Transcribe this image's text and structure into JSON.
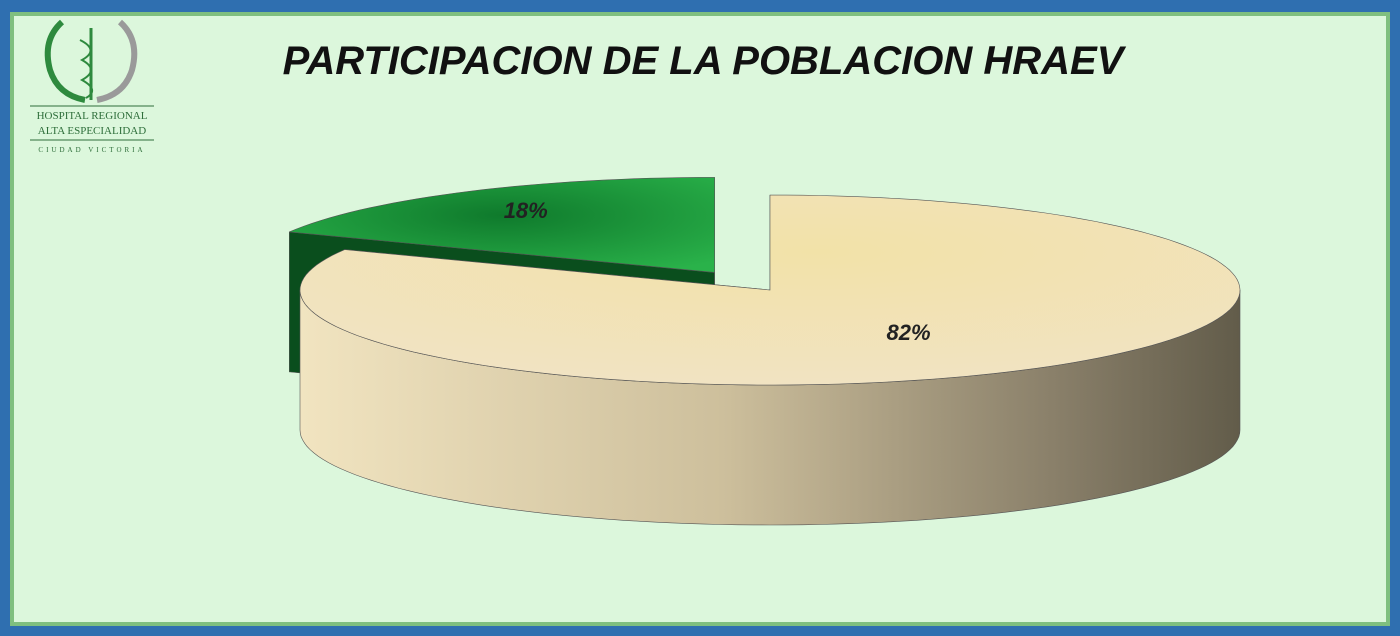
{
  "logo": {
    "lines": [
      "HOSPITAL REGIONAL",
      "ALTA ESPECIALIDAD",
      "CIUDAD VICTORIA"
    ]
  },
  "chart_data": {
    "type": "pie3d",
    "title": "PARTICIPACION DE LA POBLACION HRAEV",
    "values": [
      18,
      82
    ],
    "value_labels": [
      "18%",
      "82%"
    ],
    "colors": [
      "#1f9b3a",
      "#f2e3b8"
    ],
    "exploded": [
      true,
      false
    ]
  }
}
